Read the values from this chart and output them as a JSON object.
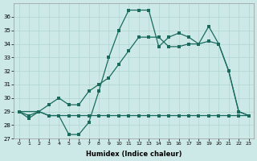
{
  "xlabel": "Humidex (Indice chaleur)",
  "bg_color": "#cde9e7",
  "line_color": "#1a6b5e",
  "grid_color": "#afd5d1",
  "ylim": [
    27,
    37
  ],
  "xlim": [
    -0.5,
    23.5
  ],
  "yticks": [
    27,
    28,
    29,
    30,
    31,
    32,
    33,
    34,
    35,
    36
  ],
  "xticks": [
    0,
    1,
    2,
    3,
    4,
    5,
    6,
    7,
    8,
    9,
    10,
    11,
    12,
    13,
    14,
    15,
    16,
    17,
    18,
    19,
    20,
    21,
    22,
    23
  ],
  "s1_x": [
    0,
    1,
    2,
    3,
    4,
    5,
    6,
    7,
    8,
    9,
    10,
    11,
    12,
    13,
    14,
    15,
    16,
    17,
    18,
    19,
    20,
    21,
    22,
    23
  ],
  "s1_y": [
    29,
    28.7,
    29,
    28.7,
    28.7,
    28.7,
    28.7,
    28.7,
    28.7,
    28.7,
    28.7,
    28.7,
    28.7,
    28.7,
    28.7,
    28.7,
    28.7,
    28.7,
    28.7,
    28.7,
    28.7,
    28.7,
    28.7,
    28.7
  ],
  "s2_x": [
    0,
    1,
    2,
    3,
    4,
    5,
    6,
    7,
    8,
    9,
    10,
    11,
    12,
    13,
    14,
    15,
    16,
    17,
    18,
    19,
    20,
    21,
    22,
    23
  ],
  "s2_y": [
    29,
    28.5,
    29,
    28.7,
    28.7,
    27.3,
    27.3,
    28.2,
    30.5,
    33.0,
    35.0,
    36.5,
    36.5,
    36.5,
    33.8,
    34.5,
    34.8,
    34.5,
    34.0,
    35.3,
    34.0,
    32.0,
    29.0,
    28.7
  ],
  "s3_x": [
    0,
    2,
    3,
    4,
    5,
    6,
    7,
    8,
    9,
    10,
    11,
    12,
    13,
    14,
    15,
    16,
    17,
    18,
    19,
    20,
    21,
    22,
    23
  ],
  "s3_y": [
    29,
    29,
    29.5,
    30,
    29.5,
    29.5,
    30.5,
    31,
    31.5,
    32.5,
    33.5,
    34.5,
    34.5,
    34.5,
    33.8,
    33.8,
    34.0,
    34.0,
    34.2,
    34.0,
    32.0,
    29.0,
    28.7
  ]
}
